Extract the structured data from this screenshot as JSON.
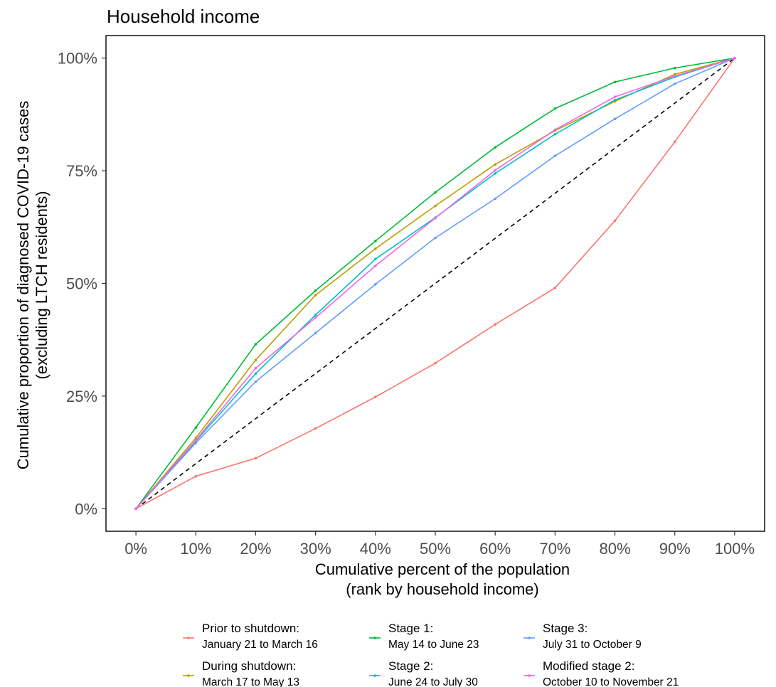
{
  "chart_data": {
    "type": "line",
    "title": "Household income",
    "xlabel": [
      "Cumulative percent of the population",
      "(rank by household income)"
    ],
    "ylabel": [
      "Cumulative proportion of diagnosed COVID-19 cases",
      "(excluding LTCH residents)"
    ],
    "x_tick_labels": [
      "0%",
      "10%",
      "20%",
      "30%",
      "40%",
      "50%",
      "60%",
      "70%",
      "80%",
      "90%",
      "100%"
    ],
    "y_tick_labels": [
      "0%",
      "25%",
      "50%",
      "75%",
      "100%"
    ],
    "x": [
      0,
      10,
      20,
      30,
      40,
      50,
      60,
      70,
      80,
      90,
      100
    ],
    "xlim": [
      -5,
      105
    ],
    "ylim": [
      -5,
      105
    ],
    "y_ticks": [
      0,
      25,
      50,
      75,
      100
    ],
    "grid": false,
    "legend_position": "bottom",
    "reference_line": {
      "style": "dashed",
      "color": "#000000",
      "x": [
        0,
        100
      ],
      "y": [
        0,
        100
      ]
    },
    "series": [
      {
        "name": "Prior to shutdown:",
        "dates": "January 21 to March 16",
        "color": "#F8766D",
        "values": [
          0,
          7.2,
          11.2,
          17.8,
          24.8,
          32.3,
          40.9,
          49,
          63.9,
          81.4,
          100
        ]
      },
      {
        "name": "During shutdown:",
        "dates": "March 17 to May 13",
        "color": "#B79F00",
        "values": [
          0,
          15.7,
          33,
          47.4,
          57.7,
          67.2,
          76.4,
          83.9,
          90.4,
          96.4,
          100
        ]
      },
      {
        "name": "Stage 1:",
        "dates": "May 14 to June 23",
        "color": "#00BA38",
        "values": [
          0,
          18,
          36.5,
          48.4,
          59.4,
          70.2,
          80.2,
          88.8,
          94.7,
          97.8,
          100
        ]
      },
      {
        "name": "Stage 2:",
        "dates": "June 24 to July 30",
        "color": "#00BFC4",
        "values": [
          0,
          15,
          30,
          43,
          55.4,
          64.6,
          74.4,
          83.1,
          90.7,
          95.8,
          100
        ]
      },
      {
        "name": "Stage 3:",
        "dates": "July 31 to October 9",
        "color": "#619CFF",
        "values": [
          0,
          14.6,
          28.2,
          39,
          49.8,
          60.1,
          68.8,
          78.3,
          86.5,
          94.3,
          100
        ]
      },
      {
        "name": "Modified stage 2:",
        "dates": "October 10 to November 21",
        "color": "#F564E3",
        "values": [
          0,
          15.2,
          31.2,
          42.4,
          53.9,
          64.5,
          75.1,
          84.1,
          91.4,
          96,
          100
        ]
      }
    ]
  }
}
